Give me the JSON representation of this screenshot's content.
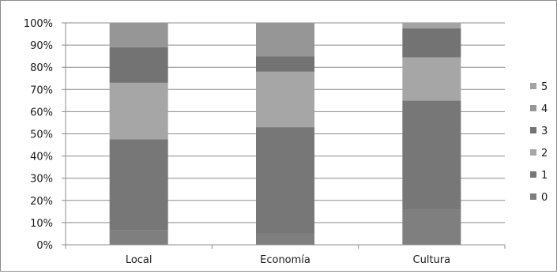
{
  "chart_data": {
    "type": "bar",
    "stacked": true,
    "percent_stacked": true,
    "categories": [
      "Local",
      "Economía",
      "Cultura"
    ],
    "series": [
      {
        "name": "0",
        "color": "#7f7f7f",
        "values": [
          6.5,
          5,
          16
        ]
      },
      {
        "name": "1",
        "color": "#777777",
        "values": [
          41,
          48,
          49
        ]
      },
      {
        "name": "2",
        "color": "#a6a6a6",
        "values": [
          25.5,
          25,
          19.5
        ]
      },
      {
        "name": "3",
        "color": "#737373",
        "values": [
          16,
          7,
          13
        ]
      },
      {
        "name": "4",
        "color": "#969696",
        "values": [
          11,
          15,
          0
        ]
      },
      {
        "name": "5",
        "color": "#a3a3a3",
        "values": [
          0,
          0,
          2.5
        ]
      }
    ],
    "yticks": [
      "0%",
      "10%",
      "20%",
      "30%",
      "40%",
      "50%",
      "60%",
      "70%",
      "80%",
      "90%",
      "100%"
    ],
    "ylim": [
      0,
      100
    ],
    "grid": true,
    "legend_position": "right"
  }
}
